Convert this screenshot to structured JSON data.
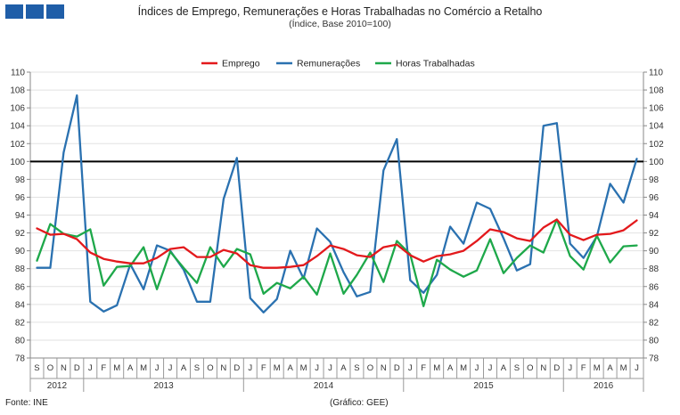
{
  "header": {
    "title": "Índices de Emprego, Remunerações e Horas Trabalhadas no Comércio a Retalho",
    "subtitle": "(Índice, Base 2010=100)"
  },
  "footer": {
    "source": "Fonte: INE",
    "credit": "(Gráfico: GEE)"
  },
  "colors": {
    "logo": "#1f5ea8",
    "emprego": "#e3191c",
    "remuneracoes": "#2a71b0",
    "horas": "#1ea84a",
    "reference": "#000000"
  },
  "chart_data": {
    "type": "line",
    "title": "Índices de Emprego, Remunerações e Horas Trabalhadas no Comércio a Retalho",
    "subtitle": "(Índice, Base 2010=100)",
    "ylim": [
      78,
      110
    ],
    "yticks": [
      78,
      80,
      82,
      84,
      86,
      88,
      90,
      92,
      94,
      96,
      98,
      100,
      102,
      104,
      106,
      108,
      110
    ],
    "reference_line": 100,
    "legend_position": "top-center",
    "categories": [
      "S",
      "O",
      "N",
      "D",
      "J",
      "F",
      "M",
      "A",
      "M",
      "J",
      "J",
      "A",
      "S",
      "O",
      "N",
      "D",
      "J",
      "F",
      "M",
      "A",
      "M",
      "J",
      "J",
      "A",
      "S",
      "O",
      "N",
      "D",
      "J",
      "F",
      "M",
      "A",
      "M",
      "J",
      "J",
      "A",
      "S",
      "O",
      "N",
      "D",
      "J",
      "F",
      "M",
      "A",
      "M",
      "J"
    ],
    "years": [
      {
        "label": "2012",
        "start": 0,
        "end": 3
      },
      {
        "label": "2013",
        "start": 4,
        "end": 15
      },
      {
        "label": "2014",
        "start": 16,
        "end": 27
      },
      {
        "label": "2015",
        "start": 28,
        "end": 39
      },
      {
        "label": "2016",
        "start": 40,
        "end": 45
      }
    ],
    "series": [
      {
        "name": "Emprego",
        "color": "#e3191c",
        "values": [
          92.5,
          91.8,
          91.9,
          91.3,
          89.8,
          89.1,
          88.8,
          88.6,
          88.6,
          89.2,
          90.2,
          90.4,
          89.3,
          89.3,
          90.1,
          89.7,
          88.4,
          88.1,
          88.1,
          88.2,
          88.4,
          89.4,
          90.6,
          90.2,
          89.5,
          89.3,
          90.4,
          90.7,
          89.5,
          88.8,
          89.4,
          89.6,
          90.0,
          91.1,
          92.4,
          92.1,
          91.4,
          91.1,
          92.6,
          93.5,
          91.8,
          91.2,
          91.8,
          91.9,
          92.3,
          93.4
        ]
      },
      {
        "name": "Remunerações",
        "color": "#2a71b0",
        "values": [
          88.1,
          88.1,
          101.0,
          107.4,
          84.3,
          83.2,
          83.9,
          88.5,
          85.7,
          90.6,
          90.0,
          87.9,
          84.3,
          84.3,
          95.8,
          100.4,
          84.7,
          83.1,
          84.6,
          90.0,
          86.9,
          92.5,
          91.0,
          87.6,
          84.9,
          85.4,
          99.0,
          102.5,
          86.7,
          85.3,
          87.3,
          92.7,
          90.8,
          95.4,
          94.7,
          91.4,
          87.8,
          88.5,
          104.0,
          104.3,
          90.8,
          89.2,
          91.6,
          97.5,
          95.4,
          100.3
        ]
      },
      {
        "name": "Horas Trabalhadas",
        "color": "#1ea84a",
        "values": [
          88.9,
          93.0,
          91.9,
          91.6,
          92.4,
          86.1,
          88.2,
          88.3,
          90.4,
          85.7,
          89.9,
          88.1,
          86.4,
          90.4,
          88.2,
          90.2,
          89.6,
          85.2,
          86.4,
          85.8,
          87.1,
          85.1,
          89.7,
          85.2,
          87.3,
          89.8,
          86.5,
          91.1,
          89.6,
          83.8,
          89.0,
          87.9,
          87.1,
          87.8,
          91.3,
          87.5,
          89.2,
          90.6,
          89.8,
          93.5,
          89.4,
          87.9,
          91.7,
          88.7,
          90.5,
          90.6
        ]
      }
    ]
  }
}
